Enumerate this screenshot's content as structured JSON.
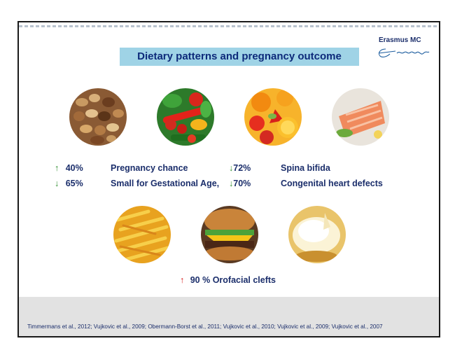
{
  "slide": {
    "title": "Dietary patterns and pregnancy outcome",
    "logo": {
      "text": "Erasmus MC",
      "icon": "erasmus-signature-icon"
    },
    "top_foods": [
      "nuts-image",
      "vegetables-image",
      "fruit-image",
      "salmon-image"
    ],
    "bottom_foods": [
      "fries-image",
      "burger-image",
      "dessert-image"
    ],
    "stats_left": [
      {
        "arrow": "↑",
        "percent": "40%",
        "label": "Pregnancy chance",
        "direction": "up"
      },
      {
        "arrow": "↓",
        "percent": "65%",
        "label": "Small for Gestational Age,",
        "direction": "down"
      }
    ],
    "stats_right": [
      {
        "arrow": "↓",
        "percent": "72%",
        "label": "Spina bifida",
        "direction": "down"
      },
      {
        "arrow": "↓",
        "percent": "70%",
        "label": "Congenital heart defects",
        "direction": "down"
      }
    ],
    "bottom_stat": {
      "arrow": "↑",
      "text": "90 % Orofacial clefts"
    },
    "colors": {
      "title_bg": "#9fd3e6",
      "text": "#1b2e6b",
      "up_arrow": "#2f8f2f",
      "bad_arrow": "#d81d1d"
    },
    "references": "Timmermans et al., 2012; Vujkovic et al., 2009; Obermann-Borst et al., 2011; Vujkovic et al., 2010; Vujkovic et al., 2009; Vujkovic et al., 2007"
  }
}
